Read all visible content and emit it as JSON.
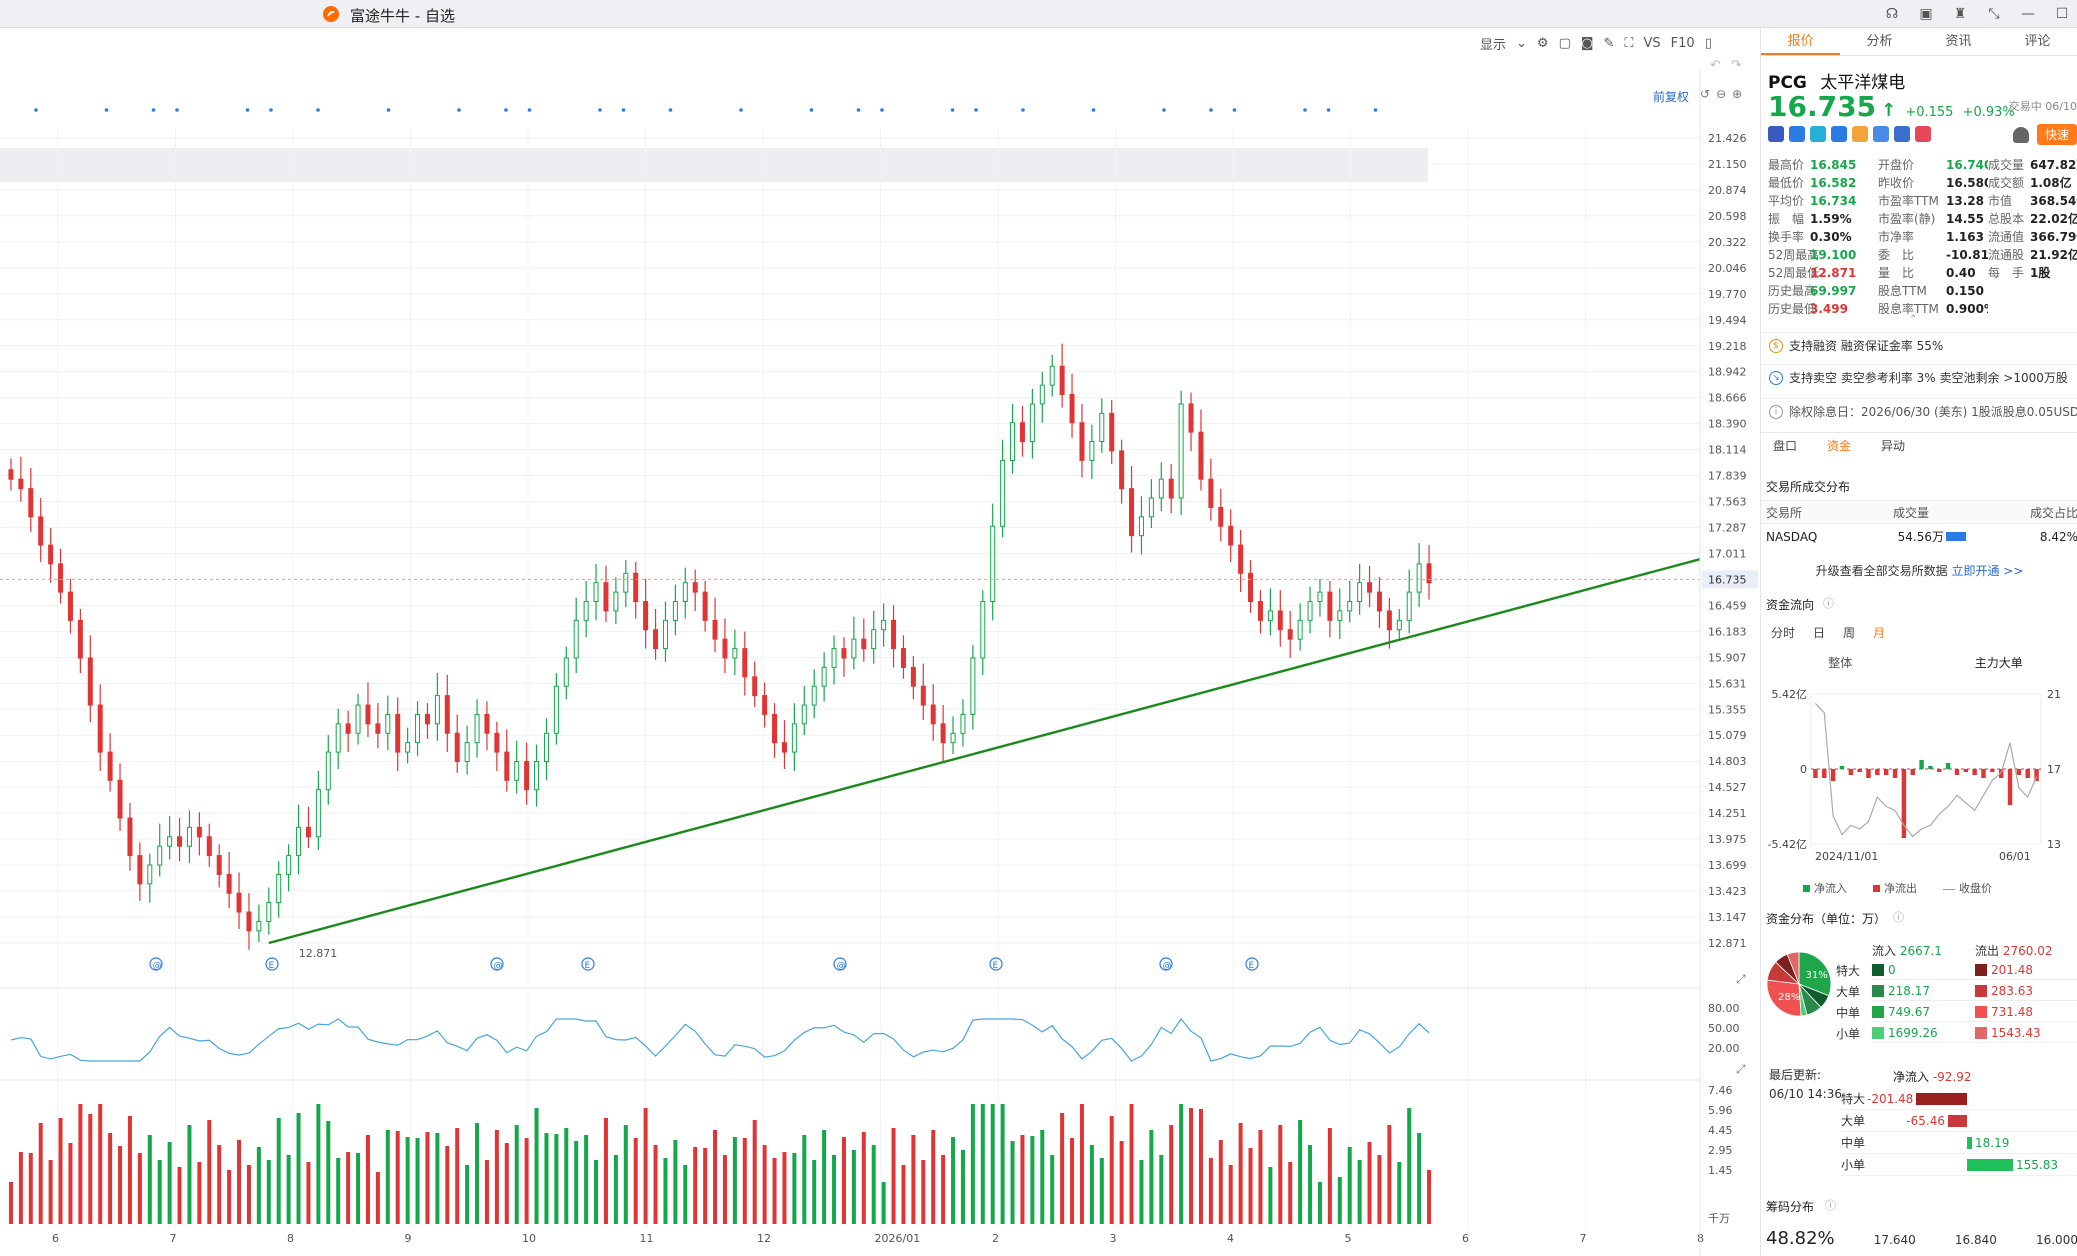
{
  "window": {
    "title": "富途牛牛 - 自选"
  },
  "toolbar": {
    "display_label": "显示",
    "vs_label": "VS",
    "f10_label": "F10",
    "fq_label": "前复权"
  },
  "chart_data": [
    {
      "type": "candlestick",
      "symbol": "PCG",
      "x_ticks": [
        "6",
        "7",
        "8",
        "9",
        "10",
        "11",
        "12",
        "2026/01",
        "2",
        "3",
        "4",
        "5",
        "6",
        "7",
        "8"
      ],
      "y_ticks": [
        "21.426",
        "21.150",
        "20.874",
        "20.598",
        "20.322",
        "20.046",
        "19.770",
        "19.494",
        "19.218",
        "18.942",
        "18.666",
        "18.390",
        "18.114",
        "17.839",
        "17.563",
        "17.287",
        "17.011",
        "16.459",
        "16.183",
        "15.907",
        "15.631",
        "15.355",
        "15.079",
        "14.803",
        "14.527",
        "14.251",
        "13.975",
        "13.699",
        "13.423",
        "13.147",
        "12.871"
      ],
      "ylim": [
        12.871,
        21.426
      ],
      "current_price_label": "16.735",
      "low_annotation": "12.871",
      "close_path": [
        17.8,
        17.7,
        17.4,
        17.1,
        16.9,
        16.6,
        16.3,
        15.9,
        15.4,
        14.9,
        14.6,
        14.2,
        13.8,
        13.5,
        13.7,
        13.9,
        14.0,
        13.9,
        14.1,
        14.0,
        13.8,
        13.6,
        13.4,
        13.2,
        13.0,
        13.1,
        13.3,
        13.6,
        13.8,
        14.1,
        14.0,
        14.5,
        14.9,
        15.2,
        15.1,
        15.4,
        15.2,
        15.1,
        15.3,
        14.9,
        15.0,
        15.3,
        15.2,
        15.5,
        15.1,
        14.8,
        15.0,
        15.3,
        15.1,
        14.9,
        14.6,
        14.8,
        14.5,
        14.8,
        15.1,
        15.6,
        15.9,
        16.3,
        16.5,
        16.7,
        16.4,
        16.6,
        16.8,
        16.5,
        16.2,
        16.0,
        16.3,
        16.5,
        16.7,
        16.6,
        16.3,
        16.1,
        15.9,
        16.0,
        15.7,
        15.5,
        15.3,
        15.0,
        14.9,
        15.2,
        15.4,
        15.6,
        15.8,
        16.0,
        15.9,
        16.1,
        16.0,
        16.2,
        16.3,
        16.0,
        15.8,
        15.6,
        15.4,
        15.2,
        15.0,
        15.1,
        15.3,
        15.9,
        16.5,
        17.3,
        18.0,
        18.4,
        18.2,
        18.6,
        18.8,
        19.0,
        18.7,
        18.4,
        18.0,
        18.2,
        18.5,
        18.1,
        17.7,
        17.2,
        17.4,
        17.6,
        17.8,
        17.6,
        18.6,
        18.3,
        17.8,
        17.5,
        17.3,
        17.1,
        16.8,
        16.5,
        16.3,
        16.4,
        16.2,
        16.1,
        16.3,
        16.5,
        16.6,
        16.3,
        16.4,
        16.5,
        16.7,
        16.6,
        16.4,
        16.2,
        16.3,
        16.6,
        16.9,
        16.7
      ],
      "volume_y_ticks": [
        "7.46",
        "5.96",
        "4.45",
        "2.95",
        "1.45"
      ],
      "volume_unit": "千万",
      "osc_y_ticks": [
        "80.00",
        "50.00",
        "20.00"
      ]
    },
    {
      "type": "bar+line",
      "title": "资金流向",
      "y_ticks": [
        "5.42亿",
        "0",
        "-5.42亿"
      ],
      "y_right_ticks": [
        "21",
        "17",
        "13"
      ],
      "x_labels": [
        "2024/11/01",
        "06/01"
      ],
      "net_flow": [
        -0.3,
        -0.3,
        -0.4,
        0.1,
        -0.2,
        -0.1,
        -0.3,
        -0.2,
        -0.2,
        -0.3,
        -2.3,
        -0.2,
        0.3,
        0.1,
        -0.1,
        0.2,
        -0.2,
        -0.1,
        -0.2,
        -0.3,
        -0.1,
        -0.3,
        -1.2,
        -0.2,
        -0.3,
        -0.4
      ],
      "price_line": [
        20.5,
        20.0,
        14.5,
        13.5,
        14.0,
        13.8,
        14.2,
        15.5,
        15.0,
        14.8,
        14.0,
        13.4,
        13.8,
        14.0,
        14.6,
        15.0,
        15.6,
        15.2,
        14.8,
        15.6,
        16.4,
        16.8,
        18.4,
        16.0,
        15.5,
        16.6
      ],
      "legend": [
        "净流入",
        "净流出",
        "收盘价"
      ]
    },
    {
      "type": "pie",
      "segments": [
        {
          "label": "31%",
          "value": 31,
          "color": "#1fa64a"
        },
        {
          "label": "",
          "value": 7,
          "color": "#0f5c2e"
        },
        {
          "label": "",
          "value": 8,
          "color": "#2a8a4a"
        },
        {
          "label": "",
          "value": 3,
          "color": "#4ccf78"
        },
        {
          "label": "28%",
          "value": 28,
          "color": "#f05050"
        },
        {
          "label": "",
          "value": 10,
          "color": "#c83a3a"
        },
        {
          "label": "",
          "value": 7,
          "color": "#7d2020"
        },
        {
          "label": "",
          "value": 6,
          "color": "#e06868"
        }
      ]
    }
  ],
  "panel": {
    "tabs": [
      "报价",
      "分析",
      "资讯",
      "评论"
    ],
    "symbol": "PCG",
    "name": "太平洋煤电",
    "price": "16.735",
    "arrow": "↑",
    "change": "+0.155",
    "change_pct": "+0.93%",
    "status": "交易中 06/10",
    "fast_label": "快速",
    "stats": [
      [
        {
          "l": "最高价",
          "v": "16.845",
          "c": "g"
        },
        {
          "l": "开盘价",
          "v": "16.740",
          "c": "g"
        },
        {
          "l": "成交量",
          "v": "647.82万",
          "c": ""
        }
      ],
      [
        {
          "l": "最低价",
          "v": "16.582",
          "c": "g"
        },
        {
          "l": "昨收价",
          "v": "16.580",
          "c": ""
        },
        {
          "l": "成交额",
          "v": "1.08亿",
          "c": ""
        }
      ],
      [
        {
          "l": "平均价",
          "v": "16.734",
          "c": "g"
        },
        {
          "l": "市盈率TTM",
          "v": "13.28",
          "c": ""
        },
        {
          "l": "市值",
          "v": "368.54亿",
          "c": ""
        }
      ],
      [
        {
          "l": "振　幅",
          "v": "1.59%",
          "c": ""
        },
        {
          "l": "市盈率(静)",
          "v": "14.55",
          "c": ""
        },
        {
          "l": "总股本",
          "v": "22.02亿",
          "c": ""
        }
      ],
      [
        {
          "l": "换手率",
          "v": "0.30%",
          "c": ""
        },
        {
          "l": "市净率",
          "v": "1.163",
          "c": ""
        },
        {
          "l": "流通值",
          "v": "366.79亿",
          "c": ""
        }
      ],
      [
        {
          "l": "52周最高",
          "v": "19.100",
          "c": "g"
        },
        {
          "l": "委　比",
          "v": "-10.81%",
          "c": ""
        },
        {
          "l": "流通股",
          "v": "21.92亿",
          "c": ""
        }
      ],
      [
        {
          "l": "52周最低",
          "v": "12.871",
          "c": "r"
        },
        {
          "l": "量　比",
          "v": "0.40",
          "c": ""
        },
        {
          "l": "每　手",
          "v": "1股",
          "c": ""
        }
      ],
      [
        {
          "l": "历史最高",
          "v": "69.997",
          "c": "g"
        },
        {
          "l": "股息TTM",
          "v": "0.150",
          "c": ""
        },
        {
          "l": "",
          "v": "",
          "c": ""
        }
      ],
      [
        {
          "l": "历史最低",
          "v": "3.499",
          "c": "r"
        },
        {
          "l": "股息率TTM",
          "v": "0.900%",
          "c": ""
        },
        {
          "l": "",
          "v": "",
          "c": ""
        }
      ]
    ],
    "info_margin": "支持融资  融资保证金率 55%",
    "info_short": "支持卖空  卖空参考利率 3%  卖空池剩余 >1000万股",
    "info_div": "除权除息日：2026/06/30 (美东)  1股派股息0.05USD",
    "subtabs": [
      "盘口",
      "资金",
      "异动"
    ],
    "exchange_title": "交易所成交分布",
    "exchange_headers": [
      "交易所",
      "成交量",
      "成交占比"
    ],
    "exchange_row": {
      "name": "NASDAQ",
      "vol": "54.56万",
      "pct": "8.42%"
    },
    "upgrade_text": "升级查看全部交易所数据",
    "upgrade_link": "立即开通 >>",
    "flow_title": "资金流向",
    "flow_tabs": [
      "分时",
      "日",
      "周",
      "月"
    ],
    "flow_sub": [
      "整体",
      "主力大单"
    ],
    "dist_title": "资金分布（单位：万）",
    "dist_in_label": "流入",
    "dist_in_total": "2667.1",
    "dist_out_label": "流出",
    "dist_out_total": "2760.02",
    "dist_rows": [
      {
        "lab": "特大",
        "in": "0",
        "out": "201.48",
        "ci": "#0f5c2e",
        "co": "#7d2020"
      },
      {
        "lab": "大单",
        "in": "218.17",
        "out": "283.63",
        "ci": "#2a8a4a",
        "co": "#c83a3a"
      },
      {
        "lab": "中单",
        "in": "749.67",
        "out": "731.48",
        "ci": "#1fa64a",
        "co": "#f05050"
      },
      {
        "lab": "小单",
        "in": "1699.26",
        "out": "1543.43",
        "ci": "#4ccf78",
        "co": "#e06868"
      }
    ],
    "update_label": "最后更新:",
    "update_time": "06/10 14:36",
    "net_in_label": "净流入",
    "net_in_total": "-92.92",
    "net_rows": [
      {
        "lab": "特大",
        "val": "-201.48",
        "sign": "neg",
        "mag": 201.48
      },
      {
        "lab": "大单",
        "val": "-65.46",
        "sign": "neg",
        "mag": 65.46
      },
      {
        "lab": "中单",
        "val": "18.19",
        "sign": "pos",
        "mag": 18.19
      },
      {
        "lab": "小单",
        "val": "155.83",
        "sign": "pos",
        "mag": 155.83
      }
    ],
    "chip_title": "筹码分布",
    "chip_pct": "48.82%",
    "chip_prices": [
      "17.640",
      "16.840",
      "16.000"
    ]
  }
}
